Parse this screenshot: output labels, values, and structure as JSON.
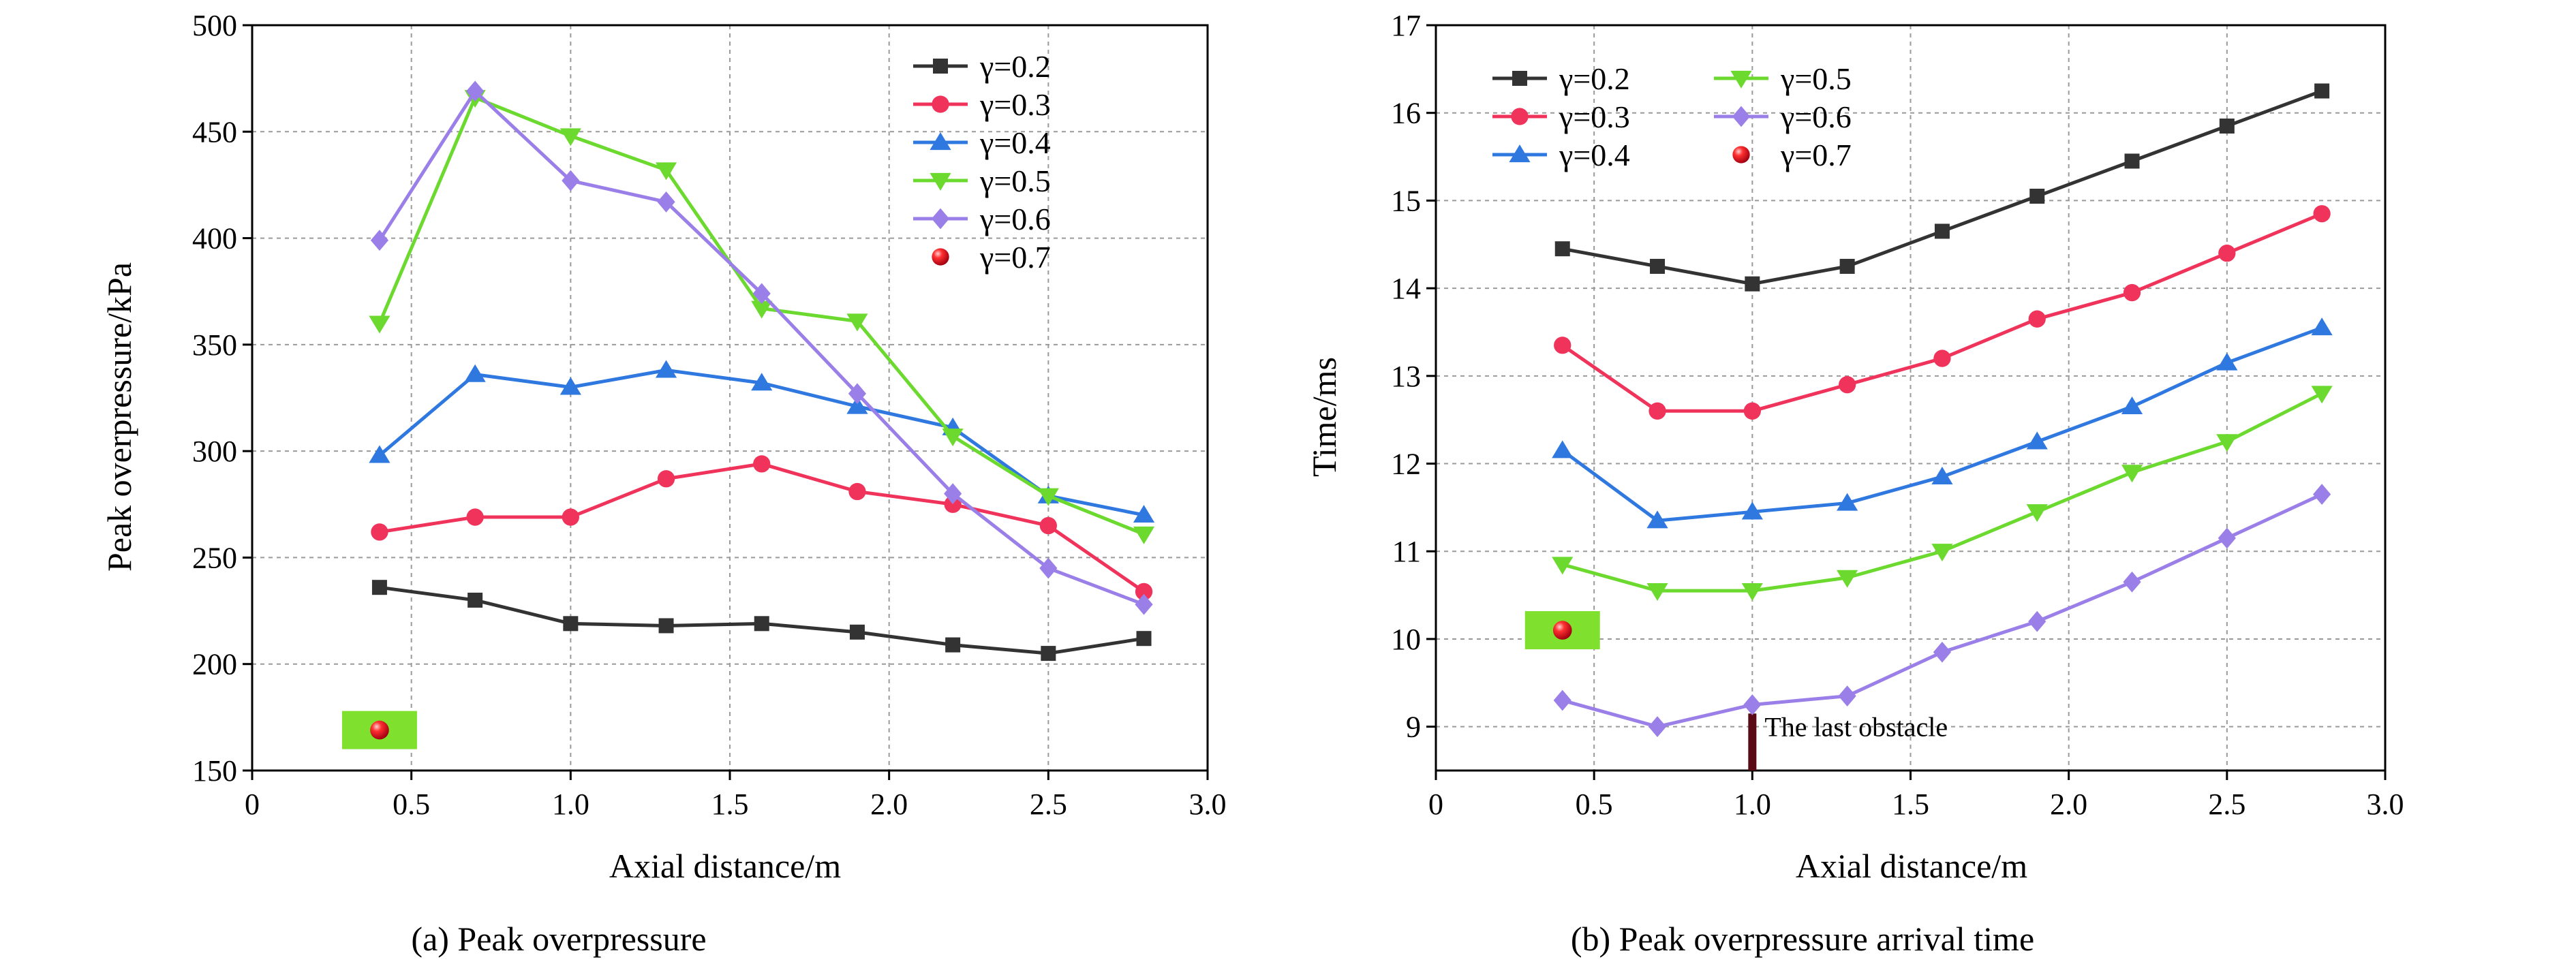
{
  "chart_data": [
    {
      "type": "line",
      "caption": "(a) Peak overpressure",
      "xlabel": "Axial distance/m",
      "ylabel": "Peak overpressure/kPa",
      "xlim": [
        0,
        3.0
      ],
      "ylim": [
        150,
        500
      ],
      "xticks": [
        "0",
        "0.5",
        "1.0",
        "1.5",
        "2.0",
        "2.5",
        "3.0"
      ],
      "xtick_values": [
        0,
        0.5,
        1.0,
        1.5,
        2.0,
        2.5,
        3.0
      ],
      "yticks": [
        "150",
        "200",
        "250",
        "300",
        "350",
        "400",
        "450",
        "500"
      ],
      "ytick_values": [
        150,
        200,
        250,
        300,
        350,
        400,
        450,
        500
      ],
      "grid": true,
      "legend_placement": "top-right",
      "x": [
        0.4,
        0.7,
        1.0,
        1.3,
        1.6,
        1.9,
        2.2,
        2.5,
        2.8
      ],
      "series": [
        {
          "name": "γ=0.2",
          "color": "#333333",
          "marker": "square",
          "values": [
            236,
            230,
            219,
            218,
            219,
            215,
            209,
            205,
            212
          ]
        },
        {
          "name": "γ=0.3",
          "color": "#f0335a",
          "marker": "circle",
          "values": [
            262,
            269,
            269,
            287,
            294,
            281,
            275,
            265,
            234
          ]
        },
        {
          "name": "γ=0.4",
          "color": "#2f78e0",
          "marker": "triangle-up",
          "values": [
            298,
            336,
            330,
            338,
            332,
            321,
            311,
            279,
            270
          ]
        },
        {
          "name": "γ=0.5",
          "color": "#6cd92f",
          "marker": "triangle-down",
          "values": [
            360,
            466,
            448,
            432,
            367,
            361,
            307,
            279,
            261
          ]
        },
        {
          "name": "γ=0.6",
          "color": "#9b7fe8",
          "marker": "diamond",
          "values": [
            399,
            469,
            427,
            417,
            374,
            327,
            280,
            245,
            228
          ]
        },
        {
          "name": "γ=0.7",
          "color": "#e8141e",
          "marker": "ball",
          "line": false,
          "highlight": "#7fe02e",
          "points": [
            [
              0.4,
              169
            ]
          ]
        }
      ]
    },
    {
      "type": "line",
      "caption": "(b) Peak overpressure arrival time",
      "xlabel": "Axial distance/m",
      "ylabel": "Time/ms",
      "xlim": [
        0,
        3.0
      ],
      "ylim": [
        8.5,
        17
      ],
      "xticks": [
        "0",
        "0.5",
        "1.0",
        "1.5",
        "2.0",
        "2.5",
        "3.0"
      ],
      "xtick_values": [
        0,
        0.5,
        1.0,
        1.5,
        2.0,
        2.5,
        3.0
      ],
      "yticks": [
        "9",
        "10",
        "11",
        "12",
        "13",
        "14",
        "15",
        "16",
        "17"
      ],
      "ytick_values": [
        9,
        10,
        11,
        12,
        13,
        14,
        15,
        16,
        17
      ],
      "grid": true,
      "legend_placement": "top-left",
      "annotation": {
        "text": "The last obstacle",
        "x": 1.0
      },
      "x": [
        0.4,
        0.7,
        1.0,
        1.3,
        1.6,
        1.9,
        2.2,
        2.5,
        2.8
      ],
      "series": [
        {
          "name": "γ=0.2",
          "color": "#333333",
          "marker": "square",
          "values": [
            14.45,
            14.25,
            14.05,
            14.25,
            14.65,
            15.05,
            15.45,
            15.85,
            16.25
          ]
        },
        {
          "name": "γ=0.3",
          "color": "#f0335a",
          "marker": "circle",
          "values": [
            13.35,
            12.6,
            12.6,
            12.9,
            13.2,
            13.65,
            13.95,
            14.4,
            14.85
          ]
        },
        {
          "name": "γ=0.4",
          "color": "#2f78e0",
          "marker": "triangle-up",
          "values": [
            12.15,
            11.35,
            11.45,
            11.55,
            11.85,
            12.25,
            12.65,
            13.15,
            13.55
          ]
        },
        {
          "name": "γ=0.5",
          "color": "#6cd92f",
          "marker": "triangle-down",
          "values": [
            10.85,
            10.55,
            10.55,
            10.7,
            11.0,
            11.45,
            11.9,
            12.25,
            12.8
          ]
        },
        {
          "name": "γ=0.6",
          "color": "#9b7fe8",
          "marker": "diamond",
          "values": [
            9.3,
            9.0,
            9.25,
            9.35,
            9.85,
            10.2,
            10.65,
            11.15,
            11.65
          ]
        },
        {
          "name": "γ=0.7",
          "color": "#e8141e",
          "marker": "ball",
          "line": false,
          "highlight": "#7fe02e",
          "points": [
            [
              0.4,
              10.1
            ]
          ]
        }
      ]
    }
  ]
}
